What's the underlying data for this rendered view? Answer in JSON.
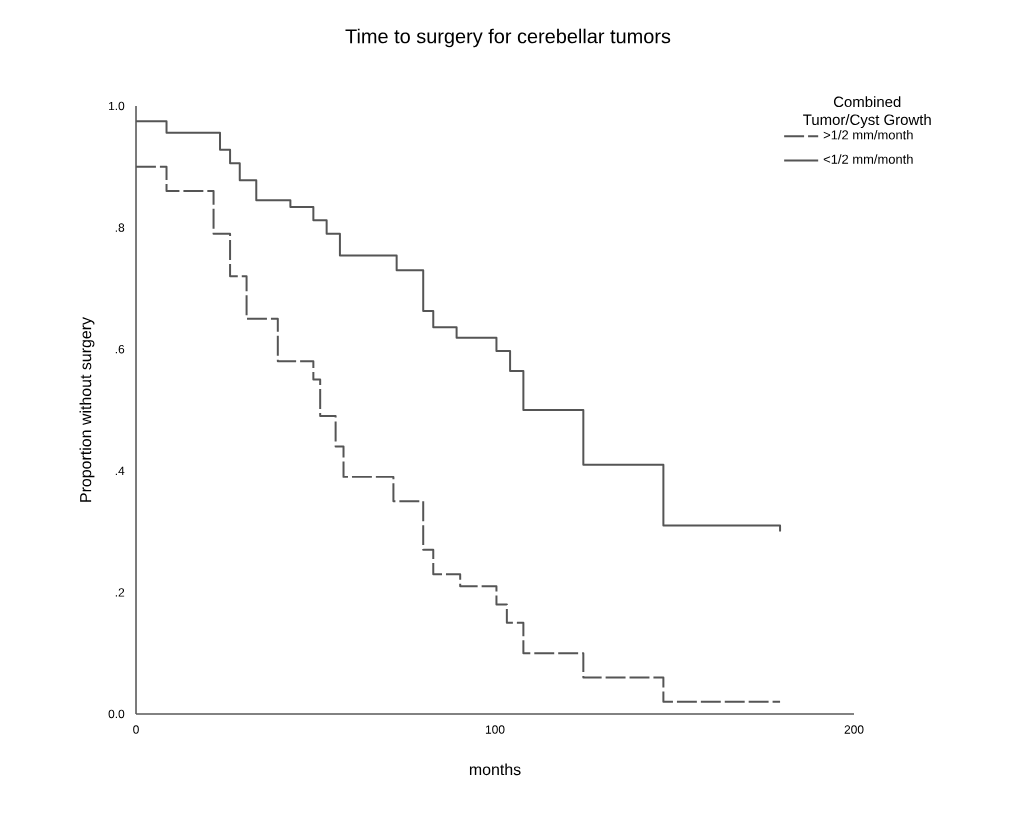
{
  "chart_data": {
    "type": "step",
    "title": "Time to surgery for cerebellar tumors",
    "xlabel": "months",
    "ylabel": "Proportion without surgery",
    "legend_title": "Combined Tumor/Cyst Growth",
    "legend": "top right",
    "grid": false,
    "xlim": [
      0,
      200
    ],
    "xticks": [
      0,
      100,
      200
    ],
    "ylim": [
      0,
      1
    ],
    "yticks": [
      {
        "value": 0,
        "label": "0.0"
      },
      {
        "value": 0.2,
        "label": ".2"
      },
      {
        "value": 0.4,
        "label": ".4"
      },
      {
        "value": 0.6,
        "label": ".6"
      },
      {
        "value": 0.8,
        "label": ".8"
      },
      {
        "value": 1,
        "label": "1.0"
      }
    ],
    "series": [
      {
        "name": ">1/2 mm/month",
        "color": "#555555",
        "line_style": "dashed",
        "x": [
          0,
          8.5,
          21.6,
          26.2,
          30.8,
          39.5,
          49.4,
          51.3,
          55.6,
          57.8,
          71.7,
          80,
          82.8,
          90.3,
          100.4,
          103.3,
          107.9,
          124.6,
          146.9,
          179.4
        ],
        "values": [
          0.9,
          0.86,
          0.79,
          0.72,
          0.65,
          0.58,
          0.55,
          0.49,
          0.44,
          0.39,
          0.35,
          0.27,
          0.23,
          0.21,
          0.18,
          0.15,
          0.1,
          0.06,
          0.02,
          0.02
        ]
      },
      {
        "name": "<1/2 mm/month",
        "color": "#555555",
        "line_style": "solid",
        "x": [
          0,
          8.5,
          23.4,
          26.2,
          28.9,
          33.5,
          43,
          49.4,
          53.1,
          56.8,
          72.6,
          80,
          82.8,
          89.3,
          100.4,
          104.2,
          107.9,
          124.6,
          146.9,
          179.4
        ],
        "values": [
          0.975,
          0.956,
          0.928,
          0.906,
          0.878,
          0.845,
          0.834,
          0.812,
          0.79,
          0.754,
          0.73,
          0.663,
          0.636,
          0.619,
          0.597,
          0.564,
          0.5,
          0.41,
          0.31,
          0.3
        ]
      }
    ]
  }
}
